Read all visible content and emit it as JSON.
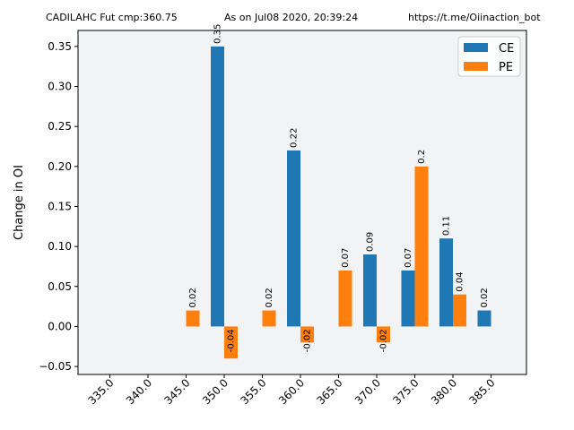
{
  "header": {
    "left": "CADILAHC Fut cmp:360.75",
    "middle": "As on Jul08 2020, 20:39:24",
    "right": "https://t.me/Oiinaction_bot"
  },
  "colors": {
    "ce": "#1f77b4",
    "pe": "#ff7f0e",
    "plot_bg": "#f2f3f4"
  },
  "chart_data": {
    "type": "bar",
    "title": "",
    "xlabel": "",
    "ylabel": "Change in OI",
    "ylim": [
      -0.06,
      0.37
    ],
    "yticks": [
      "−0.05",
      "0.00",
      "0.05",
      "0.10",
      "0.15",
      "0.20",
      "0.25",
      "0.30",
      "0.35"
    ],
    "ytick_values": [
      -0.05,
      0,
      0.05,
      0.1,
      0.15,
      0.2,
      0.25,
      0.3,
      0.35
    ],
    "categories": [
      "335.0",
      "340.0",
      "345.0",
      "350.0",
      "355.0",
      "360.0",
      "365.0",
      "370.0",
      "375.0",
      "380.0",
      "385.0"
    ],
    "legend_position": "top-right",
    "grid": false,
    "series": [
      {
        "name": "CE",
        "values": [
          null,
          null,
          null,
          0.35,
          null,
          0.22,
          null,
          0.09,
          0.07,
          0.11,
          0.02
        ],
        "labels": [
          null,
          null,
          null,
          "0.35",
          null,
          "0.22",
          null,
          "0.09",
          "0.07",
          "0.11",
          "0.02"
        ]
      },
      {
        "name": "PE",
        "values": [
          null,
          null,
          0.02,
          -0.04,
          0.02,
          -0.02,
          0.07,
          -0.02,
          0.2,
          0.04,
          null
        ],
        "labels": [
          null,
          null,
          "0.02",
          "-0.04",
          "0.02",
          "-0.02",
          "0.07",
          "-0.02",
          "0.2",
          "0.04",
          null
        ]
      }
    ]
  }
}
